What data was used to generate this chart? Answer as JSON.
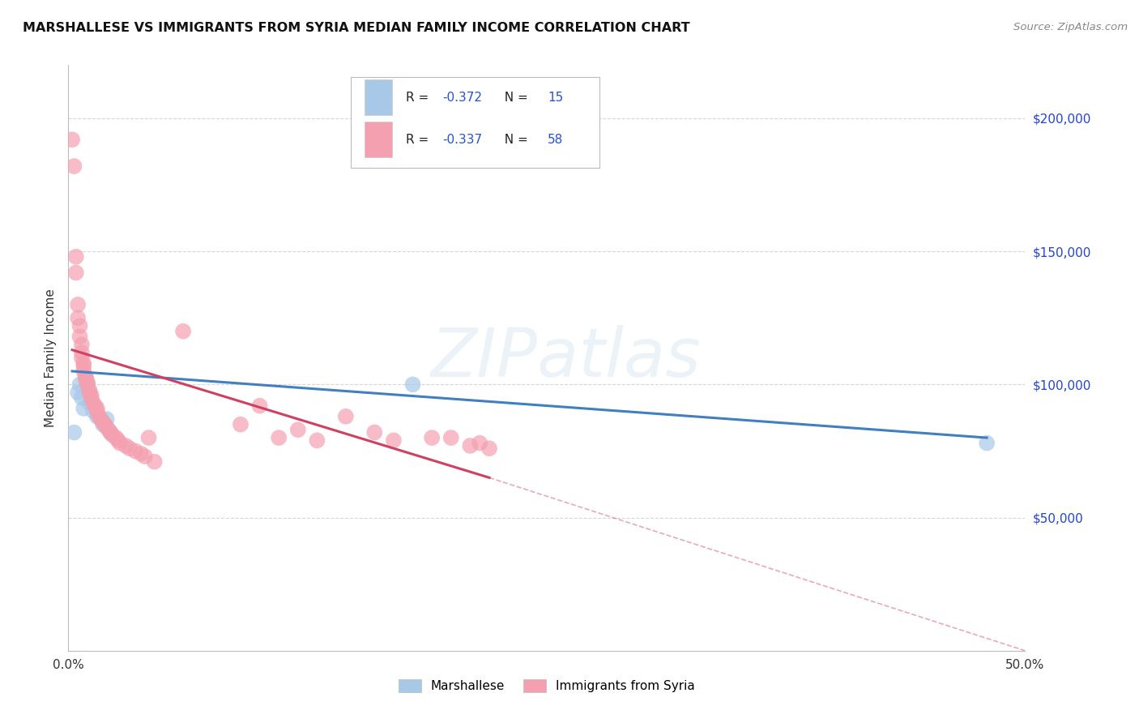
{
  "title": "MARSHALLESE VS IMMIGRANTS FROM SYRIA MEDIAN FAMILY INCOME CORRELATION CHART",
  "source": "Source: ZipAtlas.com",
  "ylabel": "Median Family Income",
  "xlim": [
    0,
    0.5
  ],
  "ylim": [
    0,
    220000
  ],
  "marshallese_R": "-0.372",
  "marshallese_N": "15",
  "syria_R": "-0.337",
  "syria_N": "58",
  "marshallese_color": "#a8c8e8",
  "syria_color": "#f4a0b0",
  "marshallese_line_color": "#4080c0",
  "syria_line_color": "#d04060",
  "background_color": "#ffffff",
  "grid_color": "#cccccc",
  "watermark_text": "ZIPatlas",
  "marshallese_points": [
    [
      0.003,
      82000
    ],
    [
      0.005,
      97000
    ],
    [
      0.006,
      100000
    ],
    [
      0.007,
      95000
    ],
    [
      0.008,
      91000
    ],
    [
      0.009,
      103000
    ],
    [
      0.01,
      100000
    ],
    [
      0.011,
      93000
    ],
    [
      0.013,
      90000
    ],
    [
      0.015,
      88000
    ],
    [
      0.018,
      85000
    ],
    [
      0.02,
      87000
    ],
    [
      0.022,
      82000
    ],
    [
      0.18,
      100000
    ],
    [
      0.48,
      78000
    ]
  ],
  "syria_points": [
    [
      0.002,
      192000
    ],
    [
      0.003,
      182000
    ],
    [
      0.004,
      148000
    ],
    [
      0.004,
      142000
    ],
    [
      0.005,
      130000
    ],
    [
      0.005,
      125000
    ],
    [
      0.006,
      122000
    ],
    [
      0.006,
      118000
    ],
    [
      0.007,
      115000
    ],
    [
      0.007,
      112000
    ],
    [
      0.007,
      110000
    ],
    [
      0.008,
      108000
    ],
    [
      0.008,
      107000
    ],
    [
      0.008,
      105000
    ],
    [
      0.009,
      103000
    ],
    [
      0.009,
      102000
    ],
    [
      0.01,
      101000
    ],
    [
      0.01,
      100000
    ],
    [
      0.011,
      98000
    ],
    [
      0.011,
      97000
    ],
    [
      0.012,
      96000
    ],
    [
      0.012,
      95000
    ],
    [
      0.013,
      93000
    ],
    [
      0.014,
      92000
    ],
    [
      0.015,
      91000
    ],
    [
      0.015,
      90000
    ],
    [
      0.016,
      88000
    ],
    [
      0.017,
      87000
    ],
    [
      0.018,
      86000
    ],
    [
      0.019,
      85000
    ],
    [
      0.02,
      84000
    ],
    [
      0.021,
      83000
    ],
    [
      0.022,
      82000
    ],
    [
      0.023,
      81000
    ],
    [
      0.025,
      80000
    ],
    [
      0.026,
      79000
    ],
    [
      0.027,
      78000
    ],
    [
      0.03,
      77000
    ],
    [
      0.032,
      76000
    ],
    [
      0.035,
      75000
    ],
    [
      0.038,
      74000
    ],
    [
      0.04,
      73000
    ],
    [
      0.042,
      80000
    ],
    [
      0.045,
      71000
    ],
    [
      0.06,
      120000
    ],
    [
      0.09,
      85000
    ],
    [
      0.1,
      92000
    ],
    [
      0.11,
      80000
    ],
    [
      0.12,
      83000
    ],
    [
      0.13,
      79000
    ],
    [
      0.145,
      88000
    ],
    [
      0.16,
      82000
    ],
    [
      0.17,
      79000
    ],
    [
      0.19,
      80000
    ],
    [
      0.2,
      80000
    ],
    [
      0.21,
      77000
    ],
    [
      0.215,
      78000
    ],
    [
      0.22,
      76000
    ]
  ],
  "syria_line_solid_end": 0.22,
  "syria_line_dash_end": 0.5
}
